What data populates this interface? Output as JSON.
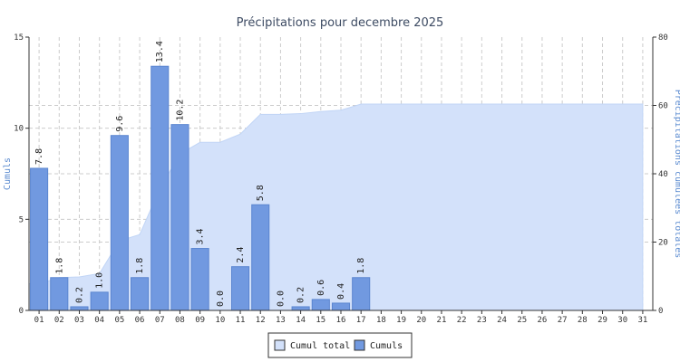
{
  "chart_data": {
    "type": "bar",
    "title": "Précipitations pour decembre 2025",
    "categories": [
      "01",
      "02",
      "03",
      "04",
      "05",
      "06",
      "07",
      "08",
      "09",
      "10",
      "11",
      "12",
      "13",
      "14",
      "15",
      "16",
      "17",
      "18",
      "19",
      "20",
      "21",
      "22",
      "23",
      "24",
      "25",
      "26",
      "27",
      "28",
      "29",
      "30",
      "31"
    ],
    "series": [
      {
        "name": "Cumuls",
        "type": "bar",
        "axis": "left",
        "values": [
          7.8,
          1.8,
          0.2,
          1.0,
          9.6,
          1.8,
          13.4,
          10.2,
          3.4,
          0.0,
          2.4,
          5.8,
          0.0,
          0.2,
          0.6,
          0.4,
          1.8,
          null,
          null,
          null,
          null,
          null,
          null,
          null,
          null,
          null,
          null,
          null,
          null,
          null,
          null
        ],
        "labels": [
          "7.8",
          "1.8",
          "0.2",
          "1.0",
          "9.6",
          "1.8",
          "13.4",
          "10.2",
          "3.4",
          "0.0",
          "2.4",
          "5.8",
          "0.0",
          "0.2",
          "0.6",
          "0.4",
          "1.8",
          "",
          "",
          "",
          "",
          "",
          "",
          "",
          "",
          "",
          "",
          "",
          "",
          "",
          ""
        ]
      },
      {
        "name": "Cumul total",
        "type": "area",
        "axis": "right",
        "values": [
          7.8,
          9.6,
          9.8,
          10.8,
          20.4,
          22.2,
          35.6,
          45.8,
          49.2,
          49.2,
          51.6,
          57.4,
          57.4,
          57.6,
          58.2,
          58.6,
          60.4,
          60.4,
          60.4,
          60.4,
          60.4,
          60.4,
          60.4,
          60.4,
          60.4,
          60.4,
          60.4,
          60.4,
          60.4,
          60.4,
          60.4
        ]
      }
    ],
    "ylabel": "Cumuls",
    "y2label": "Précipitations cumulées totales",
    "ylim": [
      0,
      15
    ],
    "y2lim": [
      0,
      80
    ],
    "yticks": [
      "0",
      "5",
      "10",
      "15"
    ],
    "y2ticks": [
      "0",
      "20",
      "40",
      "60",
      "80"
    ],
    "grid": true,
    "legend": "bottom-center",
    "colors": {
      "bar": "#7199e0",
      "bar_border": "#5a85d0",
      "area": "#d3e1fa",
      "area_line": "#c1d5f6",
      "grid": "#cccccc",
      "axis_title": "#5b8bd0"
    }
  }
}
